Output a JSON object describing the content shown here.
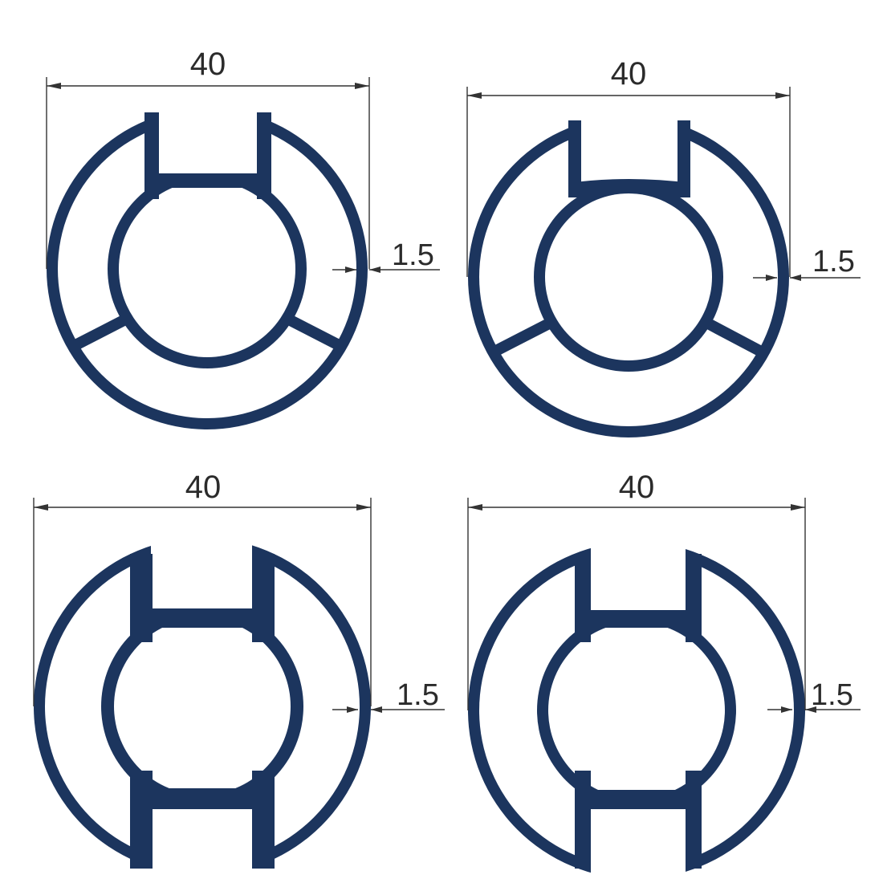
{
  "drawing": {
    "profile_color": "#1c355e",
    "line_color": "#333333",
    "profiles": [
      {
        "id": "top-left",
        "width_label": "40",
        "wall_label": "1.5",
        "style": "channel-three-arms"
      },
      {
        "id": "top-right",
        "width_label": "40",
        "wall_label": "1.5",
        "style": "channel-three-arms-notched"
      },
      {
        "id": "bottom-left",
        "width_label": "40",
        "wall_label": "1.5",
        "style": "double-channel-thick"
      },
      {
        "id": "bottom-right",
        "width_label": "40",
        "wall_label": "1.5",
        "style": "double-channel-thin"
      }
    ]
  }
}
